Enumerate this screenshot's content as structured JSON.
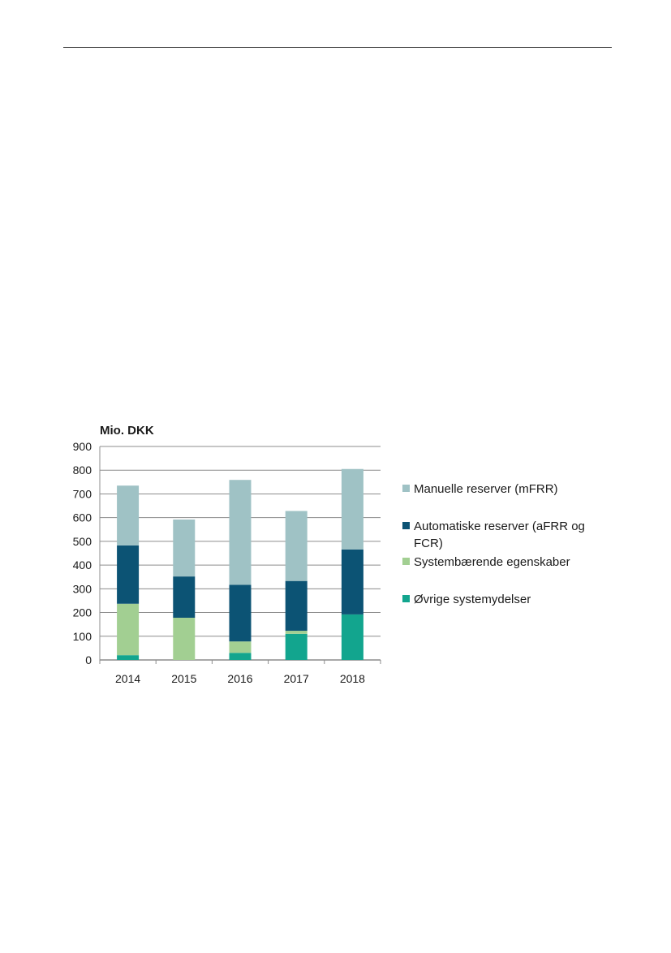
{
  "chart_data": {
    "type": "bar",
    "stacked": true,
    "unit_label": "Mio. DKK",
    "categories": [
      "2014",
      "2015",
      "2016",
      "2017",
      "2018"
    ],
    "ylim": [
      0,
      900
    ],
    "yticks": [
      0,
      100,
      200,
      300,
      400,
      500,
      600,
      700,
      800,
      900
    ],
    "grid": true,
    "legend_position": "right",
    "series": [
      {
        "name": "Øvrige systemydelser",
        "color": "#12a58e",
        "values": [
          20,
          0,
          30,
          110,
          192
        ]
      },
      {
        "name": "Systembærende egenskaber",
        "color": "#a2cf92",
        "values": [
          217,
          178,
          48,
          13,
          0
        ]
      },
      {
        "name": "Automatiske reserver (aFRR og FCR)",
        "color": "#0c5374",
        "values": [
          246,
          174,
          239,
          210,
          274
        ]
      },
      {
        "name": "Manuelle reserver (mFRR)",
        "color": "#9fc2c5",
        "values": [
          252,
          240,
          442,
          295,
          339
        ]
      }
    ],
    "legend_order": [
      3,
      2,
      1,
      0
    ],
    "legend_lines": [
      [
        "Manuelle reserver (mFRR)"
      ],
      [
        "Automatiske reserver (aFRR og",
        "FCR)"
      ],
      [
        "Systembærende egenskaber"
      ],
      [
        "Øvrige systemydelser"
      ]
    ]
  }
}
